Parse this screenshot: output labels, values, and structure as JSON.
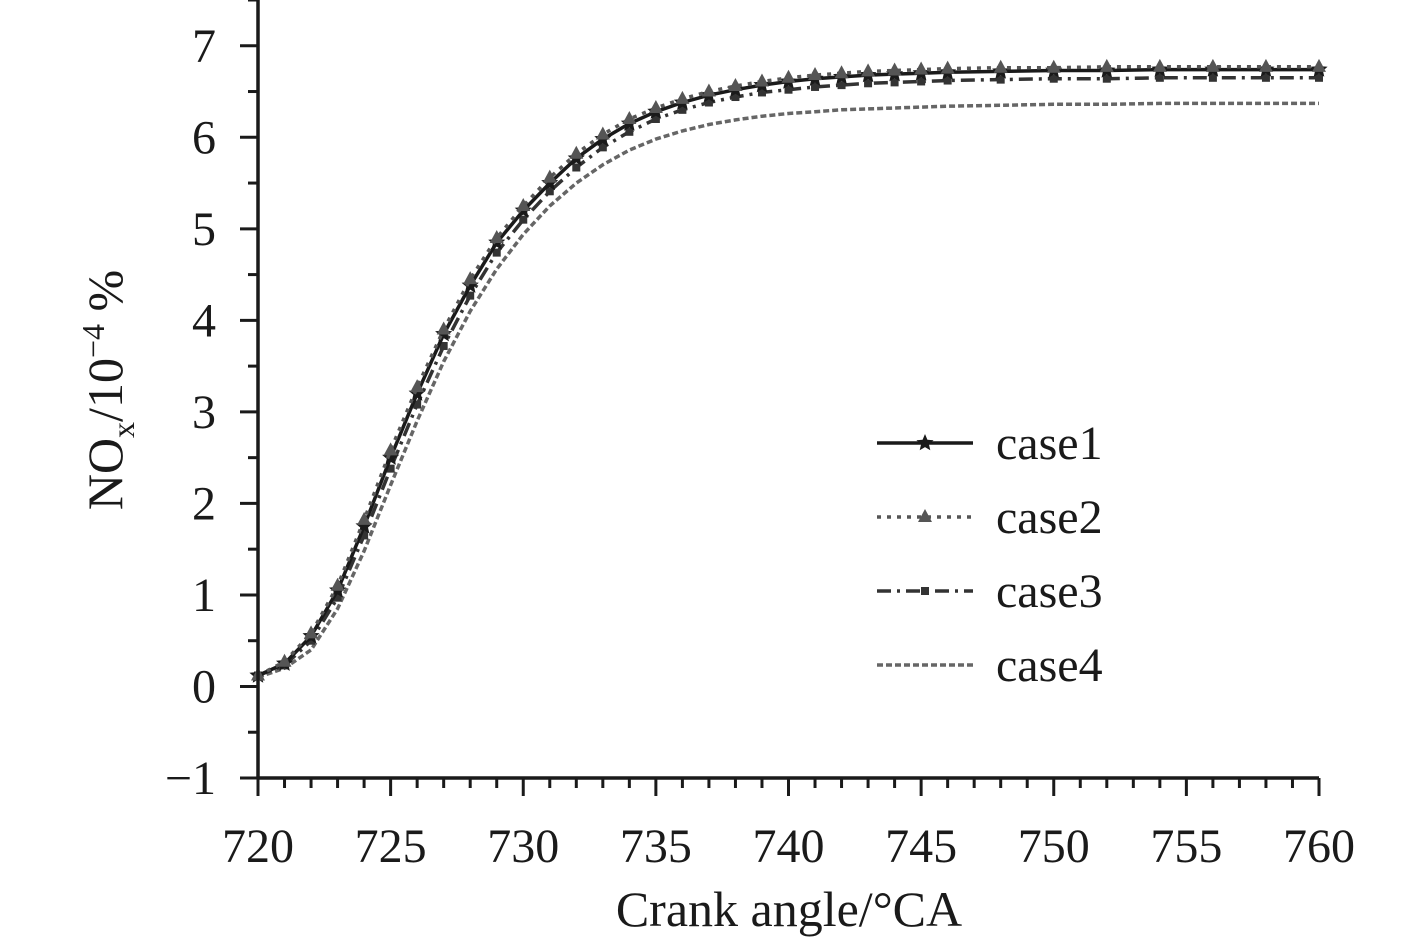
{
  "chart_data": {
    "type": "line",
    "title": "",
    "xlabel": "Crank angle/°CA",
    "ylabel": {
      "base": "NO",
      "sub": "x",
      "rest": "/10",
      "sup": "−4",
      "unit": " %"
    },
    "xlim": [
      720,
      760
    ],
    "ylim": [
      -1,
      7.5
    ],
    "x_ticks": [
      720,
      725,
      730,
      735,
      740,
      745,
      750,
      755,
      760
    ],
    "x_tick_labels": [
      "720",
      "725",
      "730",
      "735",
      "740",
      "745",
      "750",
      "755",
      "760"
    ],
    "y_ticks": [
      -1,
      0,
      1,
      2,
      3,
      4,
      5,
      6,
      7
    ],
    "y_tick_labels": [
      "−1",
      "0",
      "1",
      "2",
      "3",
      "4",
      "5",
      "6",
      "7"
    ],
    "grid": false,
    "legend_position": "right-center",
    "x": [
      720,
      721,
      722,
      723,
      724,
      725,
      726,
      727,
      728,
      729,
      730,
      731,
      732,
      733,
      734,
      735,
      736,
      737,
      738,
      739,
      740,
      741,
      742,
      743,
      744,
      745,
      746,
      748,
      750,
      752,
      754,
      756,
      758,
      760
    ],
    "series": [
      {
        "name": "case1",
        "color": "#1a1a1a",
        "dash": "solid",
        "marker": "star",
        "values": [
          0.12,
          0.25,
          0.55,
          1.05,
          1.75,
          2.5,
          3.2,
          3.85,
          4.38,
          4.85,
          5.2,
          5.5,
          5.77,
          5.98,
          6.15,
          6.28,
          6.38,
          6.46,
          6.52,
          6.57,
          6.61,
          6.64,
          6.66,
          6.68,
          6.69,
          6.7,
          6.71,
          6.72,
          6.73,
          6.73,
          6.74,
          6.74,
          6.74,
          6.74
        ]
      },
      {
        "name": "case2",
        "color": "#555555",
        "dash": "dotted",
        "marker": "triangle",
        "values": [
          0.12,
          0.27,
          0.58,
          1.1,
          1.82,
          2.58,
          3.27,
          3.9,
          4.45,
          4.9,
          5.25,
          5.56,
          5.82,
          6.03,
          6.2,
          6.32,
          6.42,
          6.5,
          6.56,
          6.61,
          6.65,
          6.68,
          6.7,
          6.72,
          6.73,
          6.74,
          6.75,
          6.76,
          6.76,
          6.77,
          6.77,
          6.77,
          6.77,
          6.77
        ]
      },
      {
        "name": "case3",
        "color": "#333333",
        "dash": "dashdot",
        "marker": "square",
        "values": [
          0.12,
          0.23,
          0.5,
          0.97,
          1.65,
          2.38,
          3.08,
          3.72,
          4.27,
          4.74,
          5.1,
          5.41,
          5.67,
          5.89,
          6.06,
          6.2,
          6.3,
          6.38,
          6.44,
          6.49,
          6.52,
          6.55,
          6.57,
          6.59,
          6.6,
          6.61,
          6.62,
          6.63,
          6.64,
          6.64,
          6.65,
          6.65,
          6.65,
          6.65
        ]
      },
      {
        "name": "case4",
        "color": "#666666",
        "dash": "dashed-fine",
        "marker": "none",
        "values": [
          0.1,
          0.2,
          0.4,
          0.85,
          1.48,
          2.2,
          2.9,
          3.55,
          4.1,
          4.56,
          4.94,
          5.25,
          5.5,
          5.7,
          5.86,
          5.98,
          6.07,
          6.14,
          6.19,
          6.23,
          6.26,
          6.28,
          6.3,
          6.31,
          6.32,
          6.33,
          6.34,
          6.35,
          6.36,
          6.36,
          6.37,
          6.37,
          6.37,
          6.37
        ]
      }
    ]
  }
}
